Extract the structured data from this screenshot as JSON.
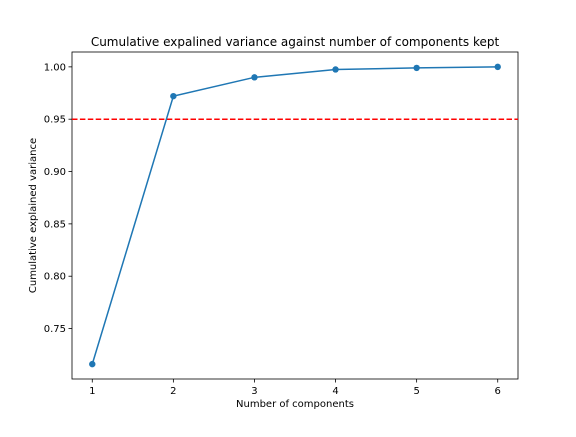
{
  "chart_data": {
    "type": "line",
    "title": "Cumulative expalined variance against number of components kept",
    "xlabel": "Number of components",
    "ylabel": "Cumulative explained variance",
    "x": [
      1,
      2,
      3,
      4,
      5,
      6
    ],
    "series": [
      {
        "values": [
          0.716,
          0.972,
          0.99,
          0.9975,
          0.999,
          1.0
        ],
        "color": "#1f77b4",
        "marker": "circle"
      }
    ],
    "threshold": {
      "y": 0.95,
      "color": "#ff0000",
      "style": "dashed"
    },
    "xticks": [
      "1",
      "2",
      "3",
      "4",
      "5",
      "6"
    ],
    "yticks": [
      "0.75",
      "0.80",
      "0.85",
      "0.90",
      "0.95",
      "1.00"
    ],
    "xlim": [
      0.75,
      6.25
    ],
    "ylim": [
      0.7018,
      1.0142
    ],
    "grid": false,
    "legend": "none"
  }
}
